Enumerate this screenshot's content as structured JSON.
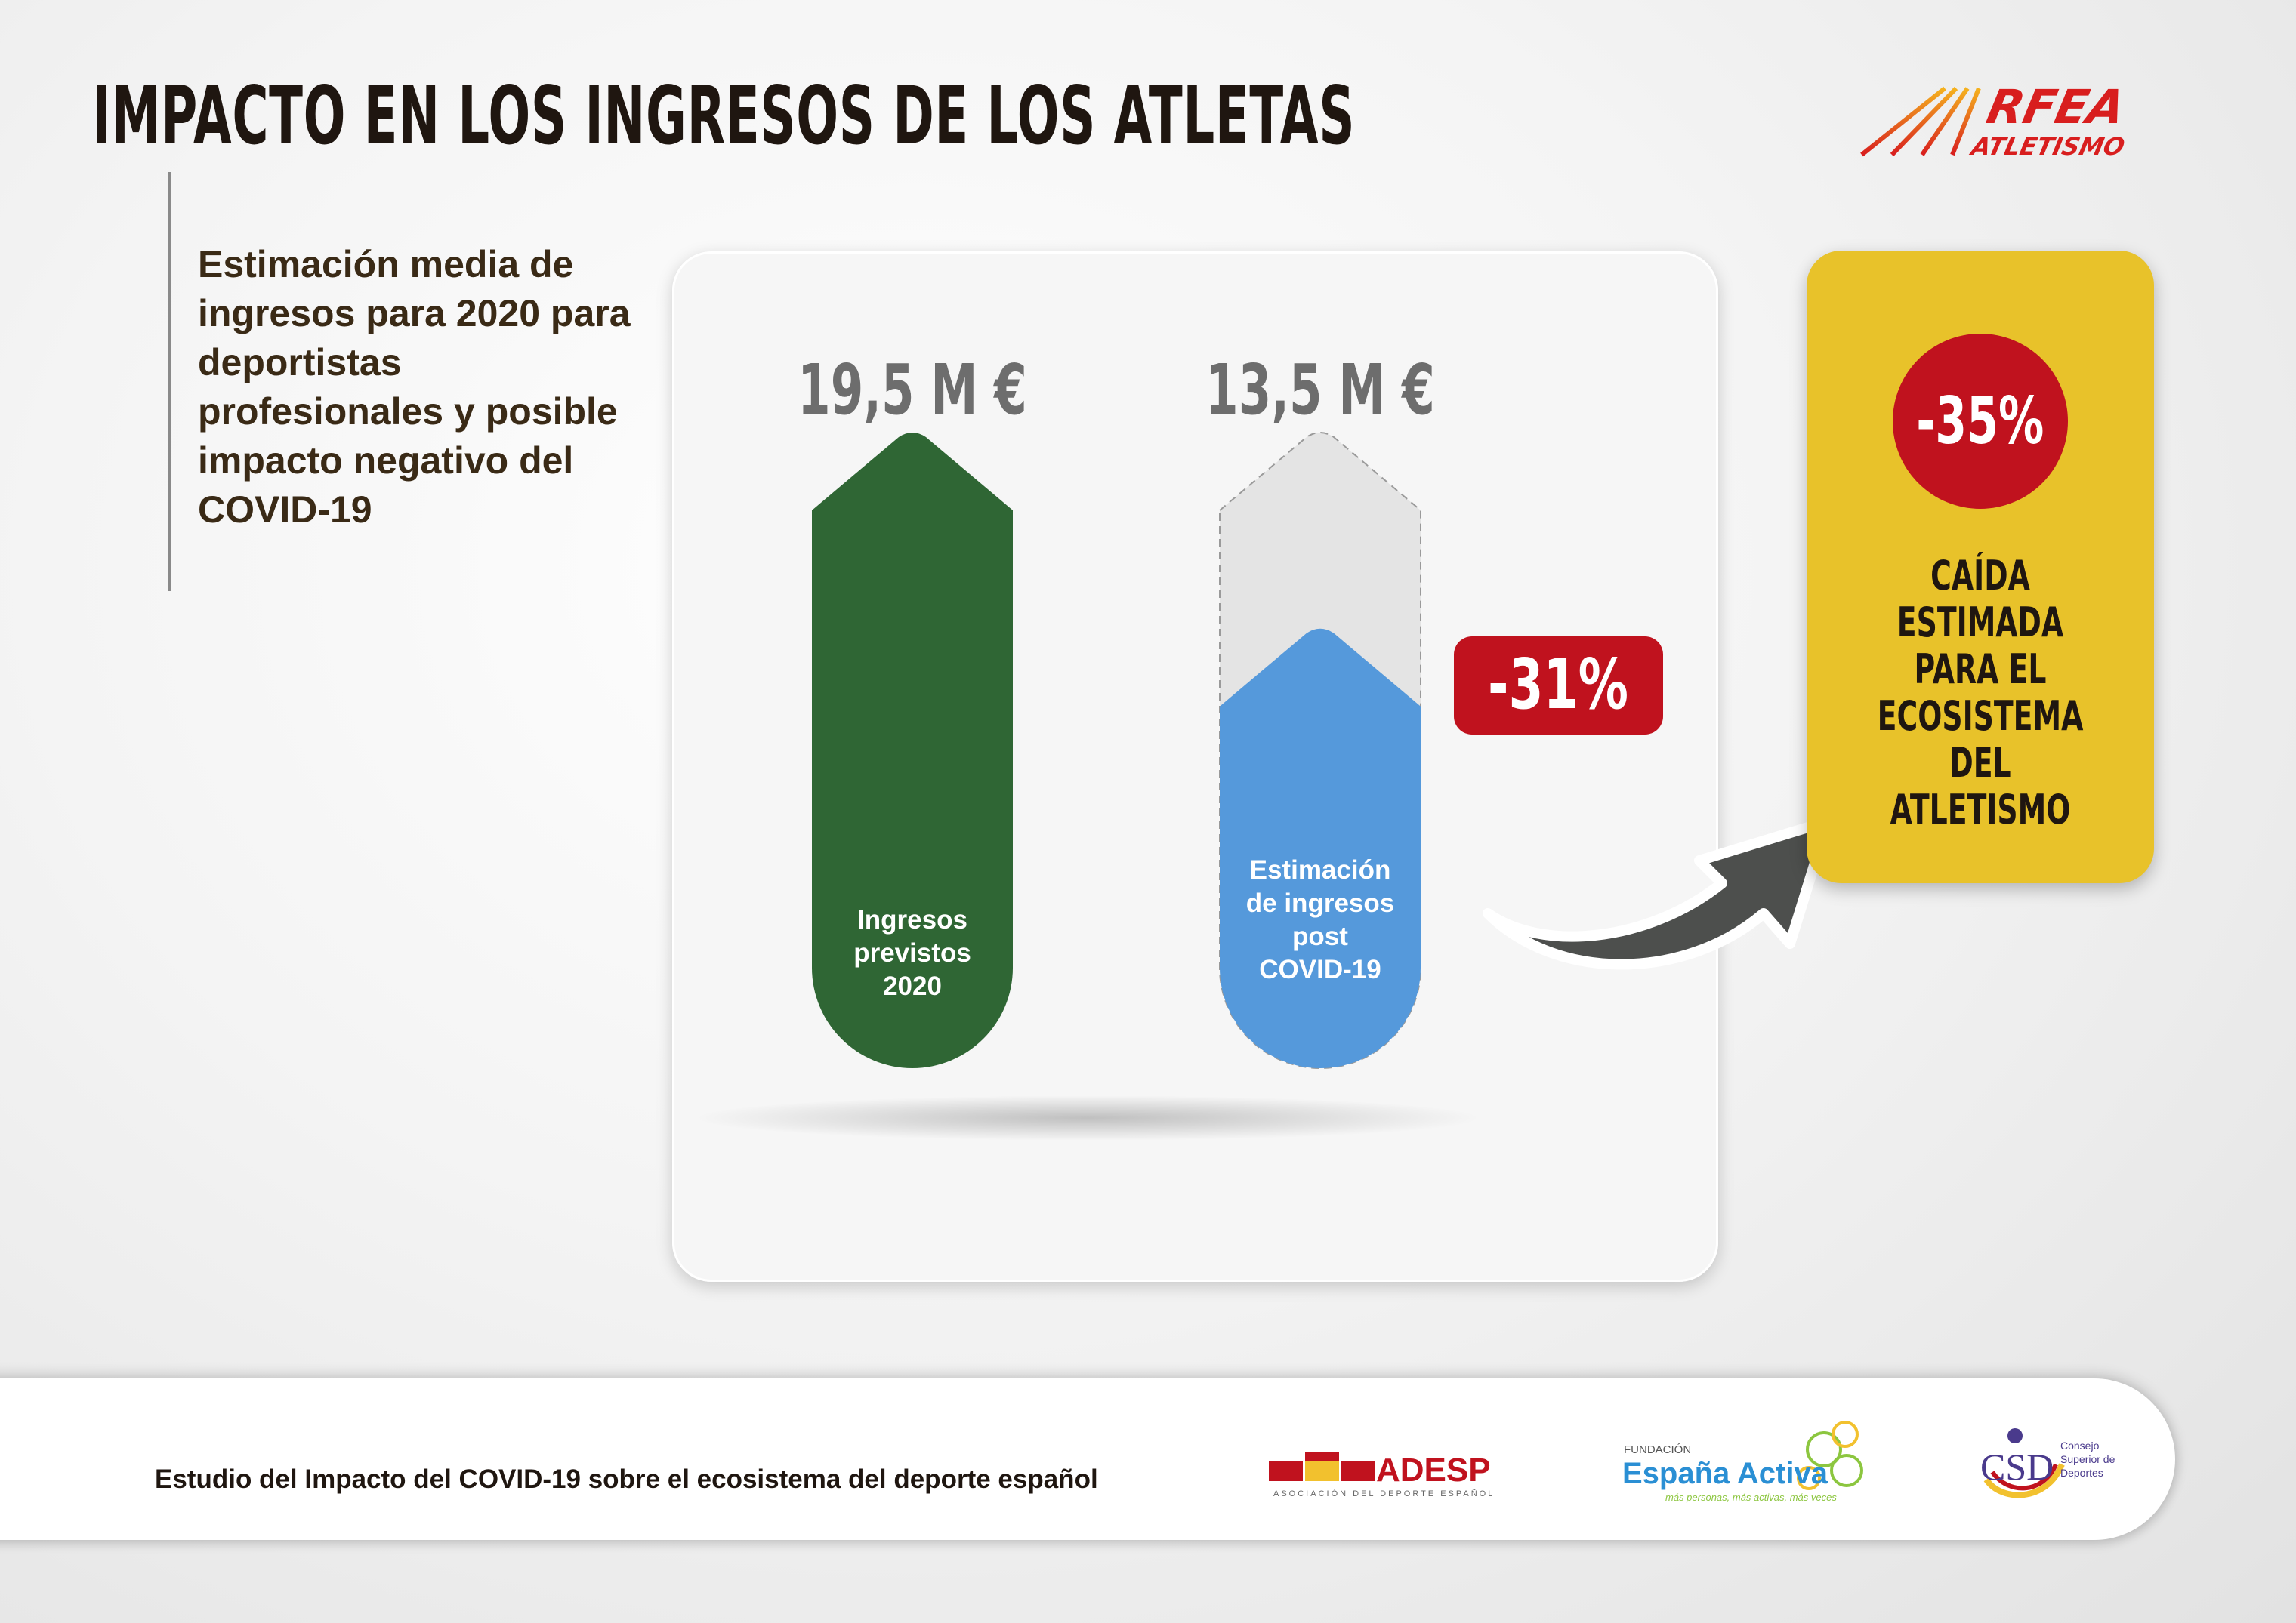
{
  "header": {
    "title": "IMPACTO EN LOS INGRESOS DE LOS ATLETAS",
    "logo": {
      "line1": "RFEA",
      "line2": "ATLETISMO"
    }
  },
  "description": "Estimación media de ingresos para 2020 para deportistas profesionales y posible impacto negativo del COVID-19",
  "chart_data": {
    "type": "bar",
    "categories": [
      "Ingresos previstos 2020",
      "Estimación de ingresos post COVID-19"
    ],
    "values": [
      19.5,
      13.5
    ],
    "value_labels": [
      "19,5 M €",
      "13,5 M €"
    ],
    "bar_labels": [
      [
        "Ingresos",
        "previstos",
        "2020"
      ],
      [
        "Estimación",
        "de ingresos",
        "post",
        "COVID-19"
      ]
    ],
    "colors": [
      "#2f6634",
      "#5599db"
    ],
    "ghost_color": "#e4e4e4",
    "change_label": "-31%",
    "change_color": "#c0121e",
    "ylim": [
      0,
      19.5
    ]
  },
  "summary": {
    "value": "-35%",
    "caption": "CAÍDA\nESTIMADA\nPARA EL\nECOSISTEMA\nDEL ATLETISMO",
    "card_color": "#e8c22a",
    "badge_color": "#c0121e"
  },
  "footer": {
    "text": "Estudio del Impacto del COVID-19 sobre el ecosistema del deporte español",
    "logos": {
      "adesp": {
        "name": "ADESP",
        "sub": "ASOCIACIÓN DEL DEPORTE ESPAÑOL"
      },
      "fea": {
        "top": "FUNDACIÓN",
        "name": "España Activa",
        "sub": "más personas, más activas, más veces"
      },
      "csd": {
        "name": "CSD",
        "sub": [
          "Consejo",
          "Superior de",
          "Deportes"
        ]
      }
    }
  }
}
